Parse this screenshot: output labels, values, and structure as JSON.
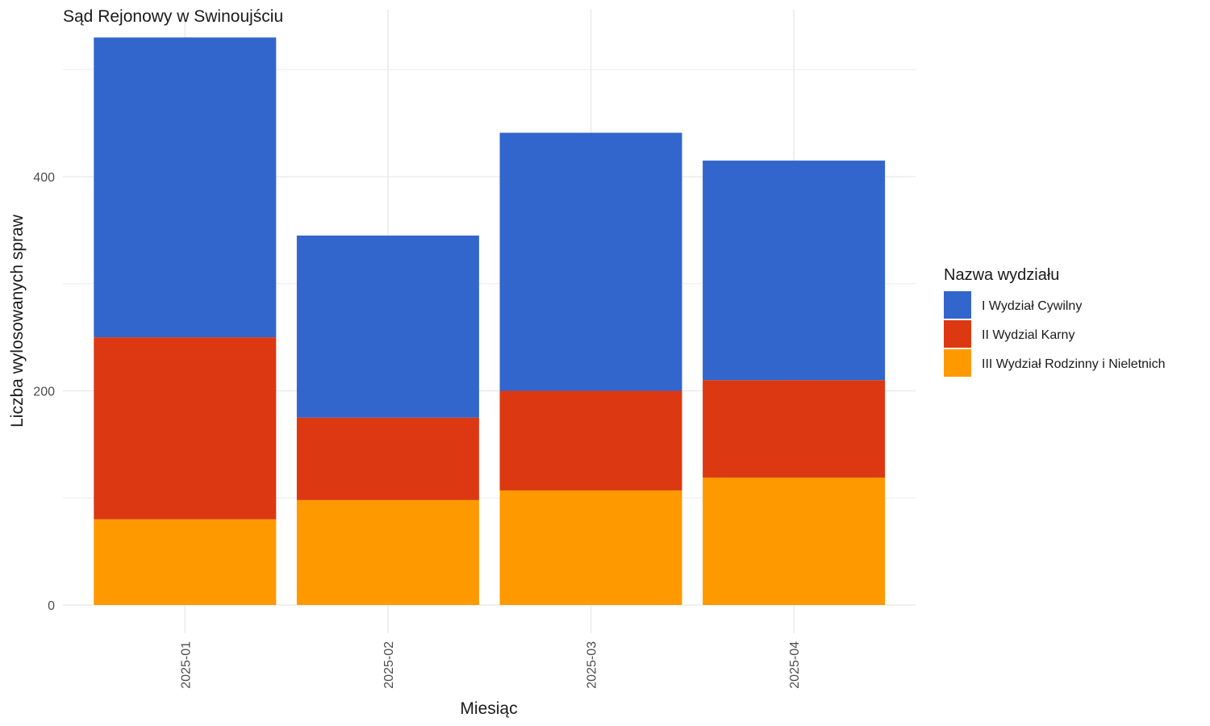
{
  "chart_data": {
    "type": "bar",
    "stacked": true,
    "title": "Sąd Rejonowy w Swinoujściu",
    "xlabel": "Miesiąc",
    "ylabel": "Liczba wylosowanych spraw",
    "categories": [
      "2025-01",
      "2025-02",
      "2025-03",
      "2025-04"
    ],
    "y_ticks": [
      0,
      200,
      400
    ],
    "ylim": [
      0,
      555
    ],
    "grid": true,
    "legend": {
      "title": "Nazwa wydziału",
      "position": "right"
    },
    "series": [
      {
        "name": "III Wydział Rodzinny i Nieletnich",
        "color": "#FF9900",
        "values": [
          80,
          98,
          107,
          119
        ]
      },
      {
        "name": "II Wydzial Karny",
        "color": "#DC3912",
        "values": [
          170,
          77,
          93,
          91
        ]
      },
      {
        "name": "I Wydział Cywilny",
        "color": "#3366CC",
        "values": [
          280,
          170,
          241,
          205
        ]
      }
    ],
    "legend_order": [
      "I Wydział Cywilny",
      "II Wydzial Karny",
      "III Wydział Rodzinny i Nieletnich"
    ]
  }
}
